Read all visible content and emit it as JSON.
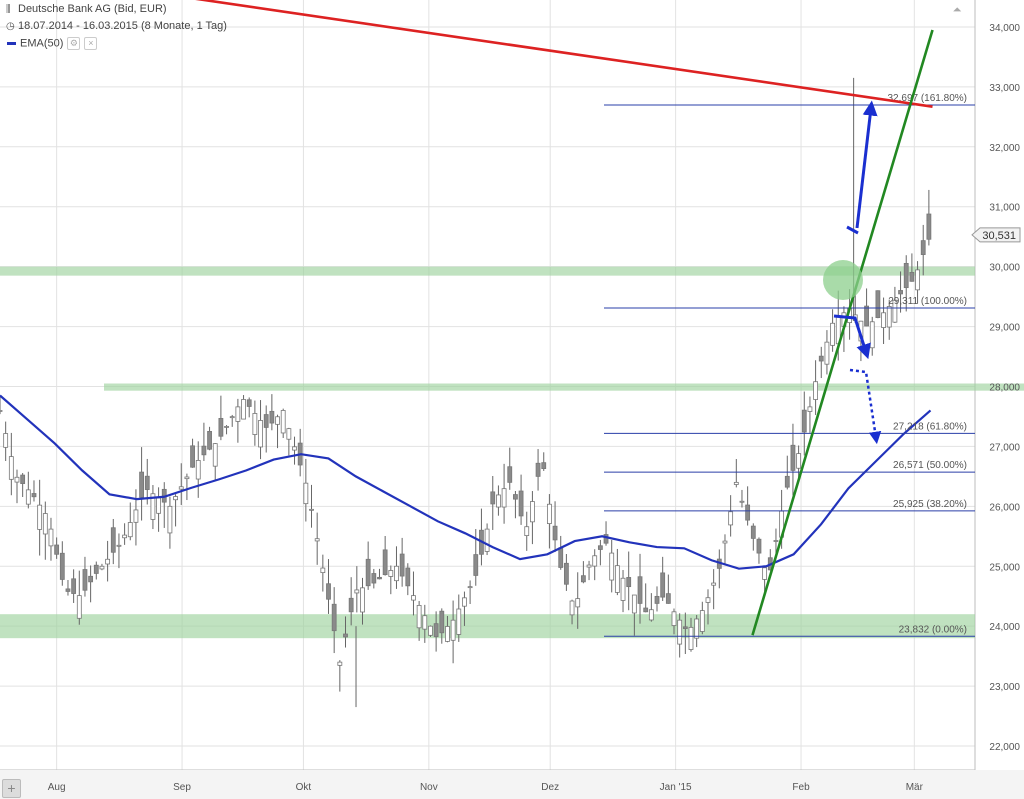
{
  "header": {
    "title": "Deutsche Bank AG (Bid, EUR)",
    "range": "18.07.2014 - 16.03.2015 (8 Monate, 1 Tag)",
    "ema_label": "EMA(50)"
  },
  "chart_data": {
    "type": "candlestick",
    "x_ticks": [
      "Aug",
      "Sep",
      "Okt",
      "Nov",
      "Dez",
      "Jan '15",
      "Feb",
      "Mär"
    ],
    "y_ticks": [
      "22,000",
      "23,000",
      "24,000",
      "25,000",
      "26,000",
      "27,000",
      "28,000",
      "29,000",
      "30,000",
      "31,000",
      "32,000",
      "33,000",
      "34,000"
    ],
    "ylim": [
      21.6,
      34.45
    ],
    "current_price": {
      "value": 30.531,
      "label": "30,531"
    },
    "fibonacci_levels": [
      {
        "value": 32.697,
        "label": "32,697 (161.80%)"
      },
      {
        "value": 29.311,
        "label": "29,311 (100.00%)"
      },
      {
        "value": 27.218,
        "label": "27,218 (61.80%)"
      },
      {
        "value": 26.571,
        "label": "26,571 (50.00%)"
      },
      {
        "value": 25.925,
        "label": "25,925 (38.20%)"
      },
      {
        "value": 23.832,
        "label": "23,832 (0.00%)"
      }
    ],
    "support_zones": [
      {
        "from": 29.85,
        "to": 30.0,
        "start_month": 0
      },
      {
        "from": 27.93,
        "to": 28.05,
        "start_month": 1.3
      },
      {
        "from": 23.8,
        "to": 24.2,
        "start_month": 0
      }
    ],
    "trendlines": [
      {
        "color": "#dd2222",
        "from": [
          17.07,
          34.78
        ],
        "to": [
          230.5,
          32.67
        ]
      },
      {
        "color": "#228822",
        "from": [
          186.0,
          23.85
        ],
        "to": [
          230.5,
          33.95
        ]
      }
    ],
    "ema_values": [
      27.85,
      27.45,
      27.05,
      26.6,
      26.2,
      26.12,
      26.16,
      26.31,
      26.45,
      26.6,
      26.78,
      26.87,
      26.8,
      26.5,
      26.25,
      26.0,
      25.75,
      25.55,
      25.32,
      25.12,
      25.2,
      25.42,
      25.5,
      25.4,
      25.32,
      25.3,
      25.1,
      24.96,
      25.0,
      25.2,
      25.7,
      26.3,
      26.75,
      27.2,
      27.6
    ],
    "ema_color": "#2233bb",
    "annotation_colors": {
      "arrows": "#1a2fd0",
      "circle": "#8ccf8c",
      "zone": "#9ed29e"
    }
  }
}
